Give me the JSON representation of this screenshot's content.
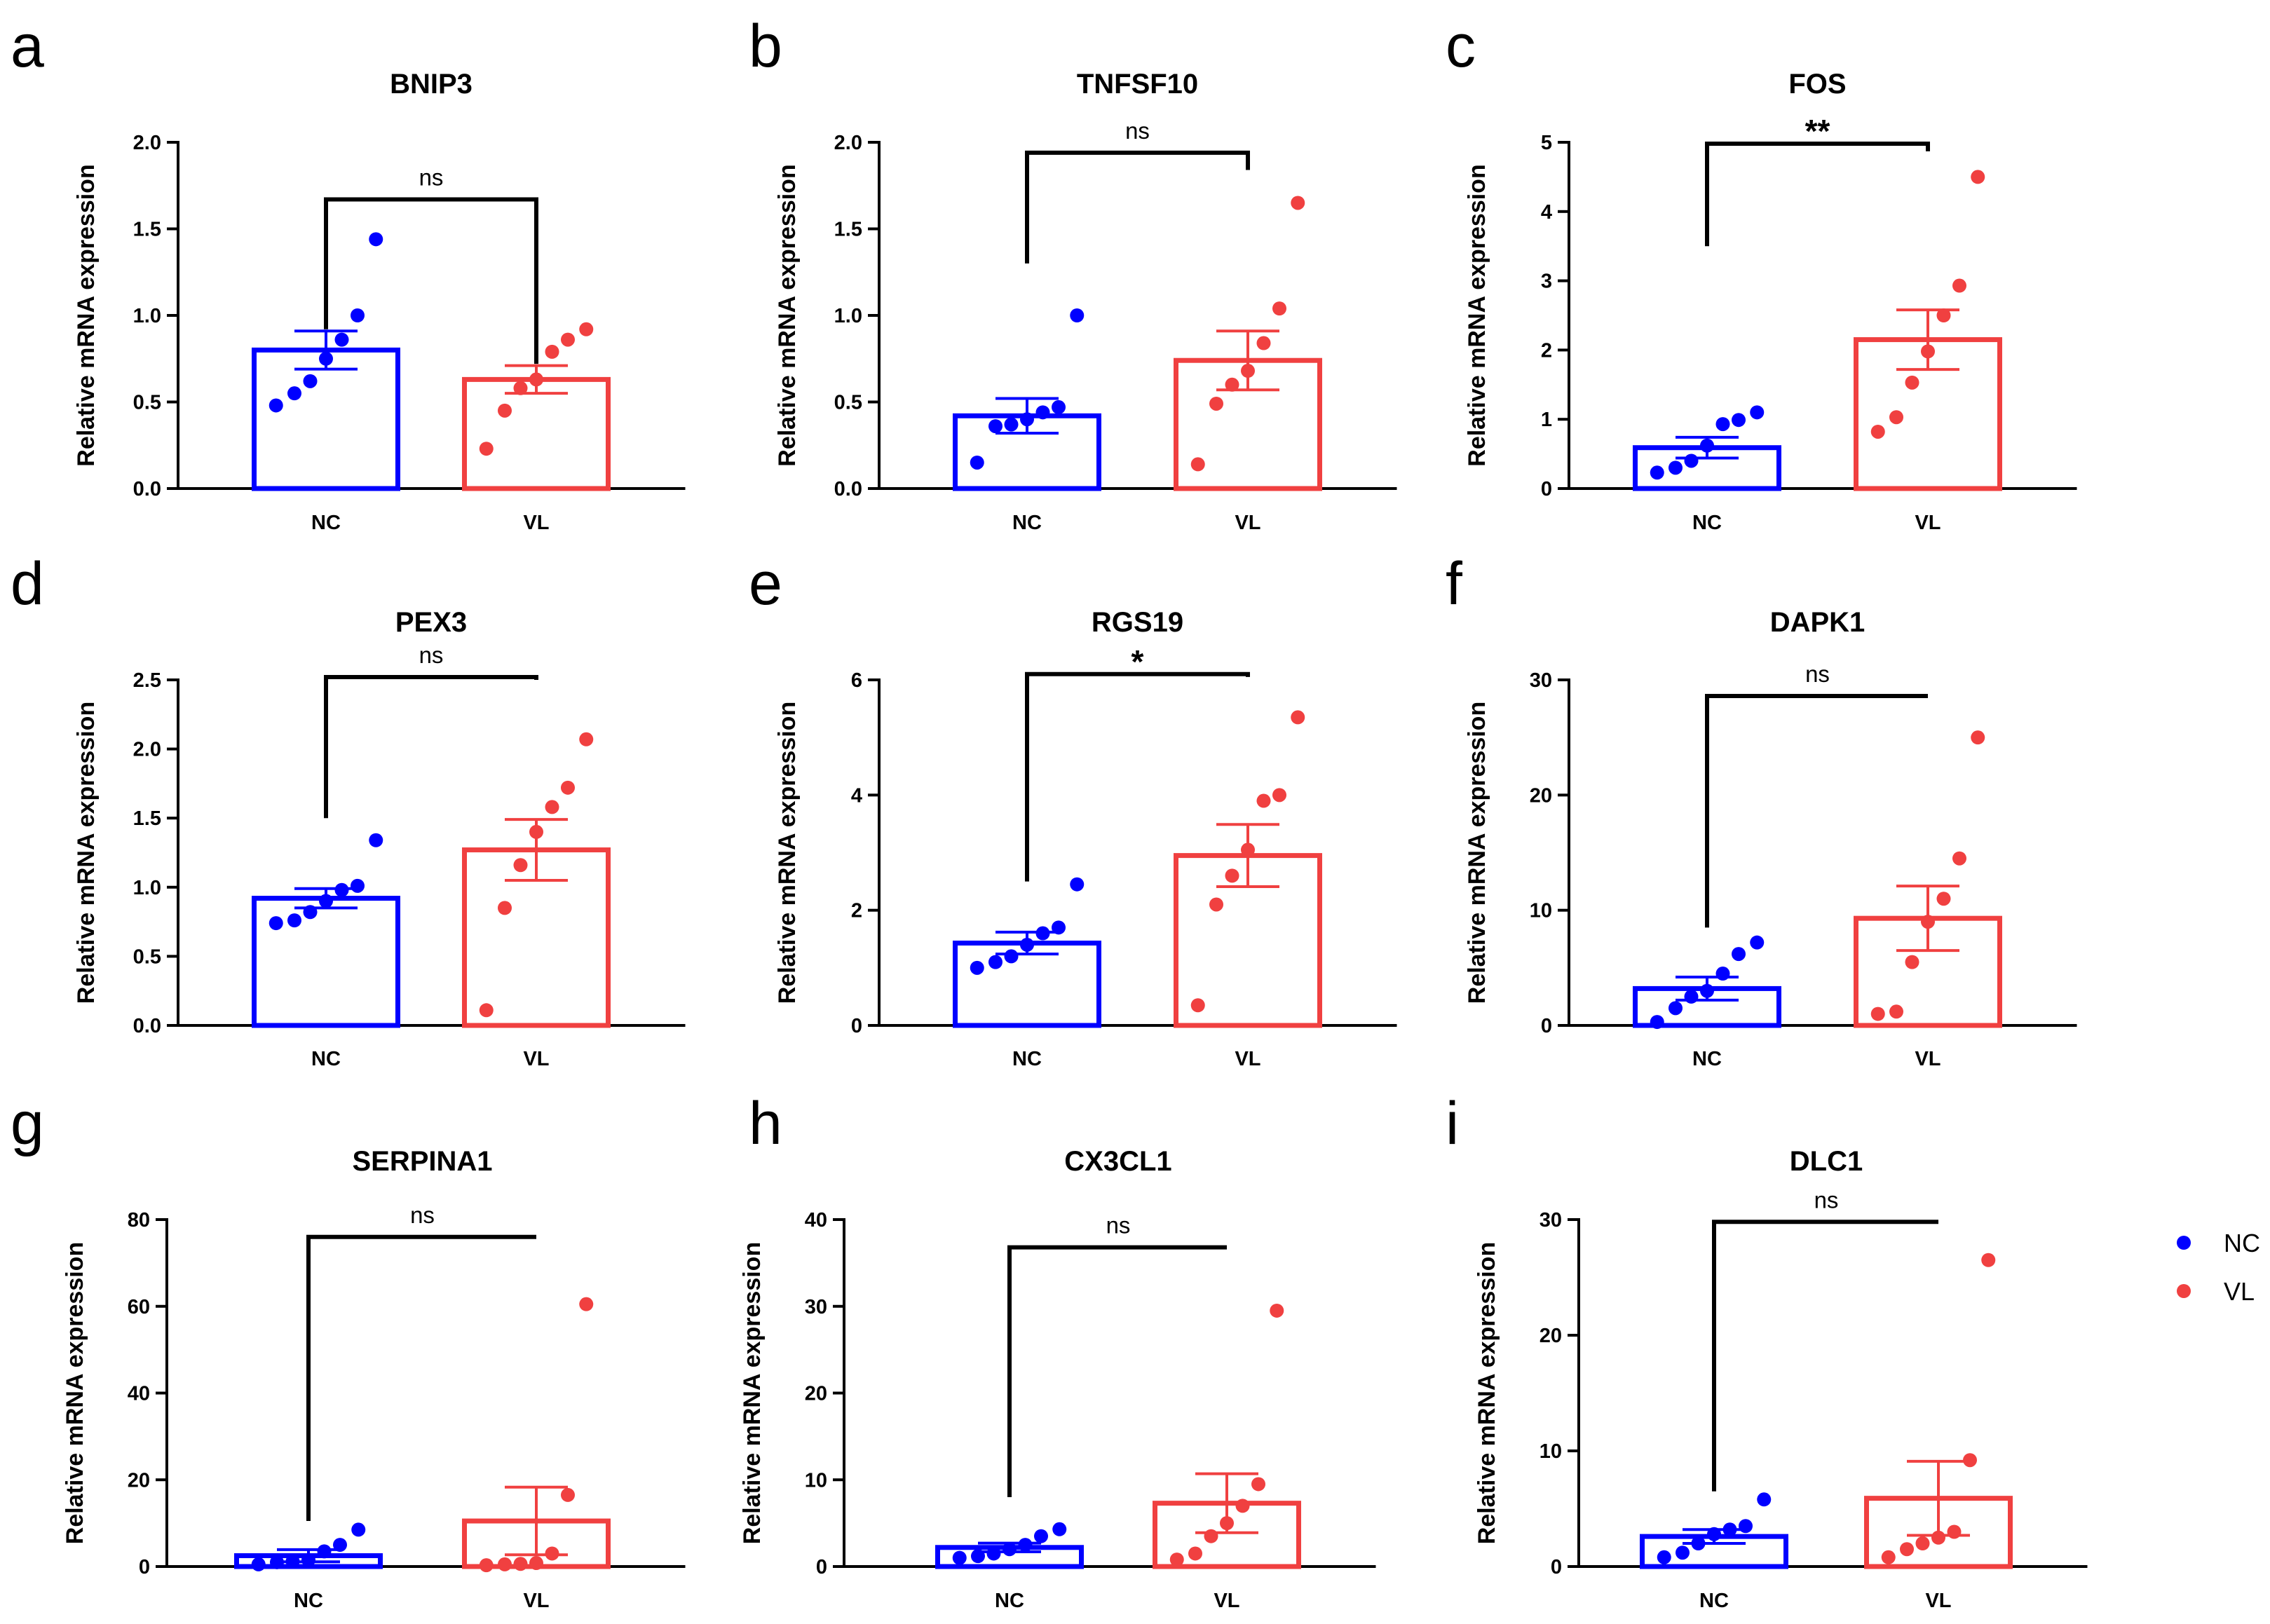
{
  "colors": {
    "NC": "#0000ff",
    "VL": "#f04040",
    "axis": "#000000"
  },
  "legend": [
    {
      "label": "NC",
      "color": "#0000ff"
    },
    {
      "label": "VL",
      "color": "#f04040"
    }
  ],
  "chart_data": [
    {
      "letter": "a",
      "title": "BNIP3",
      "type": "bar",
      "ylabel": "Relative mRNA expression",
      "categories": [
        "NC",
        "VL"
      ],
      "ylim": [
        0,
        2.0
      ],
      "yticks": [
        0,
        0.5,
        1.0,
        1.5,
        2.0
      ],
      "ytick_labels": [
        "0.0",
        "0.5",
        "1.0",
        "1.5",
        "2.0"
      ],
      "means": [
        0.8,
        0.63
      ],
      "sem": [
        0.11,
        0.08
      ],
      "points": [
        [
          0.48,
          0.55,
          0.62,
          0.75,
          0.86,
          1.0,
          1.44
        ],
        [
          0.23,
          0.45,
          0.58,
          0.63,
          0.79,
          0.86,
          0.92
        ]
      ],
      "significance": "ns",
      "bracket_levels": [
        0.92,
        0.72
      ],
      "bracket_top": 1.67
    },
    {
      "letter": "b",
      "title": "TNFSF10",
      "type": "bar",
      "ylabel": "Relative mRNA expression",
      "categories": [
        "NC",
        "VL"
      ],
      "ylim": [
        0,
        2.0
      ],
      "yticks": [
        0,
        0.5,
        1.0,
        1.5,
        2.0
      ],
      "ytick_labels": [
        "0.0",
        "0.5",
        "1.0",
        "1.5",
        "2.0"
      ],
      "means": [
        0.42,
        0.74
      ],
      "sem": [
        0.1,
        0.17
      ],
      "points": [
        [
          0.15,
          0.36,
          0.37,
          0.4,
          0.44,
          0.47,
          1.0
        ],
        [
          0.14,
          0.49,
          0.6,
          0.68,
          0.84,
          1.04,
          1.65
        ]
      ],
      "significance": "ns",
      "bracket_levels": [
        1.3,
        1.84
      ],
      "bracket_top": 1.94
    },
    {
      "letter": "c",
      "title": "FOS",
      "type": "bar",
      "ylabel": "Relative mRNA expression",
      "categories": [
        "NC",
        "VL"
      ],
      "ylim": [
        0,
        5
      ],
      "yticks": [
        0,
        1,
        2,
        3,
        4,
        5
      ],
      "ytick_labels": [
        "0",
        "1",
        "2",
        "3",
        "4",
        "5"
      ],
      "means": [
        0.59,
        2.15
      ],
      "sem": [
        0.15,
        0.43
      ],
      "points": [
        [
          0.23,
          0.3,
          0.4,
          0.62,
          0.93,
          0.99,
          1.1
        ],
        [
          0.82,
          1.03,
          1.53,
          1.98,
          2.5,
          2.93,
          4.5
        ]
      ],
      "significance": "**",
      "bracket_levels": [
        3.5,
        4.87
      ],
      "bracket_top": 4.98
    },
    {
      "letter": "d",
      "title": "PEX3",
      "type": "bar",
      "ylabel": "Relative mRNA expression",
      "categories": [
        "NC",
        "VL"
      ],
      "ylim": [
        0,
        2.5
      ],
      "yticks": [
        0,
        0.5,
        1.0,
        1.5,
        2.0,
        2.5
      ],
      "ytick_labels": [
        "0.0",
        "0.5",
        "1.0",
        "1.5",
        "2.0",
        "2.5"
      ],
      "means": [
        0.92,
        1.27
      ],
      "sem": [
        0.07,
        0.22
      ],
      "points": [
        [
          0.74,
          0.76,
          0.82,
          0.9,
          0.98,
          1.01,
          1.34
        ],
        [
          0.11,
          0.85,
          1.16,
          1.4,
          1.58,
          1.72,
          2.07
        ]
      ],
      "significance": "ns",
      "bracket_levels": [
        1.5,
        2.5
      ],
      "bracket_top": 2.52
    },
    {
      "letter": "e",
      "title": "RGS19",
      "type": "bar",
      "ylabel": "Relative mRNA expression",
      "categories": [
        "NC",
        "VL"
      ],
      "ylim": [
        0,
        6
      ],
      "yticks": [
        0,
        2,
        4,
        6
      ],
      "ytick_labels": [
        "0",
        "2",
        "4",
        "6"
      ],
      "means": [
        1.43,
        2.95
      ],
      "sem": [
        0.19,
        0.54
      ],
      "points": [
        [
          1.0,
          1.1,
          1.2,
          1.4,
          1.6,
          1.7,
          2.45
        ],
        [
          0.35,
          2.1,
          2.6,
          3.05,
          3.9,
          4.0,
          5.35
        ]
      ],
      "significance": "*",
      "bracket_levels": [
        2.5,
        6.05
      ],
      "bracket_top": 6.1
    },
    {
      "letter": "f",
      "title": "DAPK1",
      "type": "bar",
      "ylabel": "Relative mRNA expression",
      "categories": [
        "NC",
        "VL"
      ],
      "ylim": [
        0,
        30
      ],
      "yticks": [
        0,
        10,
        20,
        30
      ],
      "ytick_labels": [
        "0",
        "10",
        "20",
        "30"
      ],
      "means": [
        3.2,
        9.3
      ],
      "sem": [
        1.0,
        2.8
      ],
      "points": [
        [
          0.3,
          1.5,
          2.5,
          3.0,
          4.5,
          6.2,
          7.2
        ],
        [
          1.0,
          1.2,
          5.5,
          9.0,
          11.0,
          14.5,
          25.0
        ]
      ],
      "significance": "ns",
      "bracket_levels": [
        8.5,
        28.6
      ],
      "bracket_top": 28.6
    },
    {
      "letter": "g",
      "title": "SERPINA1",
      "type": "bar",
      "ylabel": "Relative mRNA expression",
      "categories": [
        "NC",
        "VL"
      ],
      "ylim": [
        0,
        80
      ],
      "yticks": [
        0,
        20,
        40,
        60,
        80
      ],
      "ytick_labels": [
        "0",
        "20",
        "40",
        "60",
        "80"
      ],
      "means": [
        2.5,
        10.5
      ],
      "sem": [
        1.4,
        7.8
      ],
      "points": [
        [
          0.5,
          1.0,
          1.2,
          1.5,
          3.5,
          5.0,
          8.5
        ],
        [
          0.3,
          0.5,
          0.6,
          0.8,
          3.0,
          16.5,
          60.5
        ]
      ],
      "significance": "ns",
      "bracket_levels": [
        10.5,
        76.0
      ],
      "bracket_top": 76.0
    },
    {
      "letter": "h",
      "title": "CX3CL1",
      "type": "bar",
      "ylabel": "Relative mRNA expression",
      "categories": [
        "NC",
        "VL"
      ],
      "ylim": [
        0,
        40
      ],
      "yticks": [
        0,
        10,
        20,
        30,
        40
      ],
      "ytick_labels": [
        "0",
        "10",
        "20",
        "30",
        "40"
      ],
      "means": [
        2.2,
        7.3
      ],
      "sem": [
        0.5,
        3.4
      ],
      "points": [
        [
          1.0,
          1.2,
          1.5,
          2.0,
          2.5,
          3.5,
          4.3
        ],
        [
          0.8,
          1.5,
          3.5,
          5.0,
          7.0,
          9.5,
          29.5
        ]
      ],
      "significance": "ns",
      "bracket_levels": [
        8.0,
        36.8
      ],
      "bracket_top": 36.8
    },
    {
      "letter": "i",
      "title": "DLC1",
      "type": "bar",
      "ylabel": "Relative mRNA expression",
      "categories": [
        "NC",
        "VL"
      ],
      "ylim": [
        0,
        30
      ],
      "yticks": [
        0,
        10,
        20,
        30
      ],
      "ytick_labels": [
        "0",
        "10",
        "20",
        "30"
      ],
      "means": [
        2.6,
        5.9
      ],
      "sem": [
        0.6,
        3.2
      ],
      "points": [
        [
          0.8,
          1.2,
          2.0,
          2.8,
          3.2,
          3.5,
          5.8
        ],
        [
          0.8,
          1.5,
          2.0,
          2.5,
          3.0,
          9.2,
          26.5
        ]
      ],
      "significance": "ns",
      "bracket_levels": [
        6.5,
        29.8
      ],
      "bracket_top": 29.8
    }
  ]
}
